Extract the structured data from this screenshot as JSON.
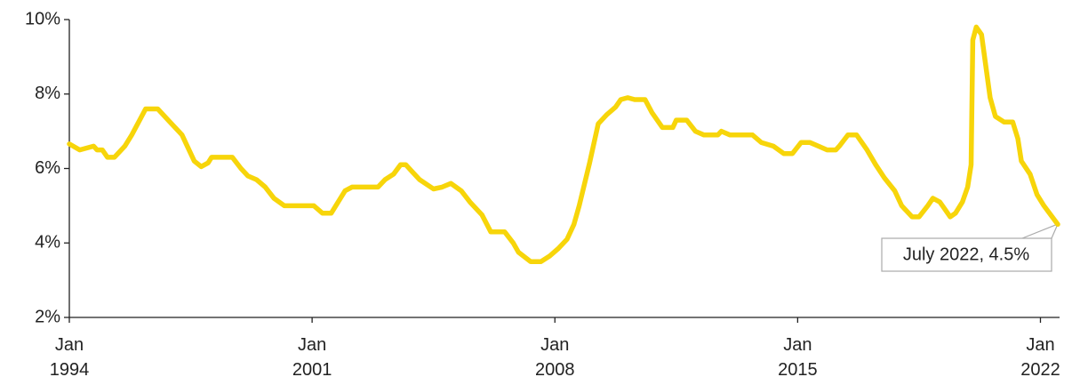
{
  "chart_data": {
    "type": "line",
    "x": [
      1994.0,
      1994.3,
      1994.7,
      1994.8,
      1994.95,
      1995.1,
      1995.3,
      1995.6,
      1995.8,
      1996.0,
      1996.2,
      1996.55,
      1996.85,
      1997.25,
      1997.4,
      1997.6,
      1997.8,
      1998.0,
      1998.1,
      1998.7,
      1998.95,
      1999.15,
      1999.4,
      1999.65,
      1999.9,
      2000.2,
      2001.05,
      2001.3,
      2001.55,
      2001.75,
      2001.95,
      2002.15,
      2002.9,
      2003.1,
      2003.35,
      2003.55,
      2003.7,
      2003.9,
      2004.1,
      2004.5,
      2004.75,
      2005.0,
      2005.3,
      2005.55,
      2005.9,
      2006.15,
      2006.55,
      2006.8,
      2006.95,
      2007.3,
      2007.6,
      2007.85,
      2008.1,
      2008.35,
      2008.55,
      2008.7,
      2009.0,
      2009.25,
      2009.5,
      2009.75,
      2009.9,
      2010.1,
      2010.3,
      2010.6,
      2010.8,
      2011.1,
      2011.4,
      2011.5,
      2011.8,
      2012.05,
      2012.3,
      2012.7,
      2012.8,
      2013.05,
      2013.7,
      2013.95,
      2014.3,
      2014.6,
      2014.85,
      2015.1,
      2015.35,
      2015.6,
      2015.85,
      2016.1,
      2016.2,
      2016.45,
      2016.7,
      2017.0,
      2017.25,
      2017.5,
      2017.8,
      2018.0,
      2018.3,
      2018.5,
      2018.75,
      2018.9,
      2019.1,
      2019.25,
      2019.4,
      2019.55,
      2019.75,
      2019.9,
      2020.0,
      2020.05,
      2020.15,
      2020.3,
      2020.55,
      2020.7,
      2020.95,
      2021.2,
      2021.35,
      2021.45,
      2021.7,
      2021.9,
      2022.1,
      2022.5
    ],
    "series": [
      {
        "color": "#f7d50a",
        "values": [
          6.66,
          6.5,
          6.6,
          6.5,
          6.5,
          6.3,
          6.3,
          6.6,
          6.9,
          7.25,
          7.6,
          7.6,
          7.3,
          6.9,
          6.6,
          6.2,
          6.05,
          6.15,
          6.3,
          6.3,
          6.0,
          5.8,
          5.7,
          5.5,
          5.2,
          5.0,
          5.0,
          4.8,
          4.8,
          5.1,
          5.4,
          5.5,
          5.5,
          5.7,
          5.85,
          6.1,
          6.1,
          5.9,
          5.7,
          5.45,
          5.5,
          5.6,
          5.4,
          5.1,
          4.75,
          4.3,
          4.3,
          4.0,
          3.75,
          3.5,
          3.5,
          3.65,
          3.85,
          4.1,
          4.5,
          5.0,
          6.15,
          7.2,
          7.45,
          7.65,
          7.85,
          7.9,
          7.85,
          7.85,
          7.5,
          7.1,
          7.1,
          7.3,
          7.3,
          7.0,
          6.9,
          6.9,
          7.0,
          6.9,
          6.9,
          6.7,
          6.6,
          6.4,
          6.4,
          6.7,
          6.7,
          6.6,
          6.5,
          6.5,
          6.6,
          6.9,
          6.9,
          6.5,
          6.1,
          5.75,
          5.4,
          5.0,
          4.7,
          4.7,
          5.0,
          5.2,
          5.1,
          4.9,
          4.7,
          4.8,
          5.1,
          5.5,
          6.1,
          9.45,
          9.8,
          9.6,
          7.9,
          7.4,
          7.25,
          7.25,
          6.8,
          6.2,
          5.85,
          5.3,
          5.0,
          4.5
        ]
      }
    ],
    "xlim": [
      1994,
      2022.5
    ],
    "xticks": [
      {
        "value": 1994,
        "label": "Jan 1994"
      },
      {
        "value": 2001,
        "label": "Jan 2001"
      },
      {
        "value": 2008,
        "label": "Jan 2008"
      },
      {
        "value": 2015,
        "label": "Jan 2015"
      },
      {
        "value": 2022,
        "label": "Jan 2022"
      }
    ],
    "ylim": [
      2,
      10
    ],
    "yticks": [
      {
        "value": 2,
        "label": "2%"
      },
      {
        "value": 4,
        "label": "4%"
      },
      {
        "value": 6,
        "label": "6%"
      },
      {
        "value": 8,
        "label": "8%"
      },
      {
        "value": 10,
        "label": "10%"
      }
    ],
    "annotation": "July 2022, 4.5%"
  }
}
